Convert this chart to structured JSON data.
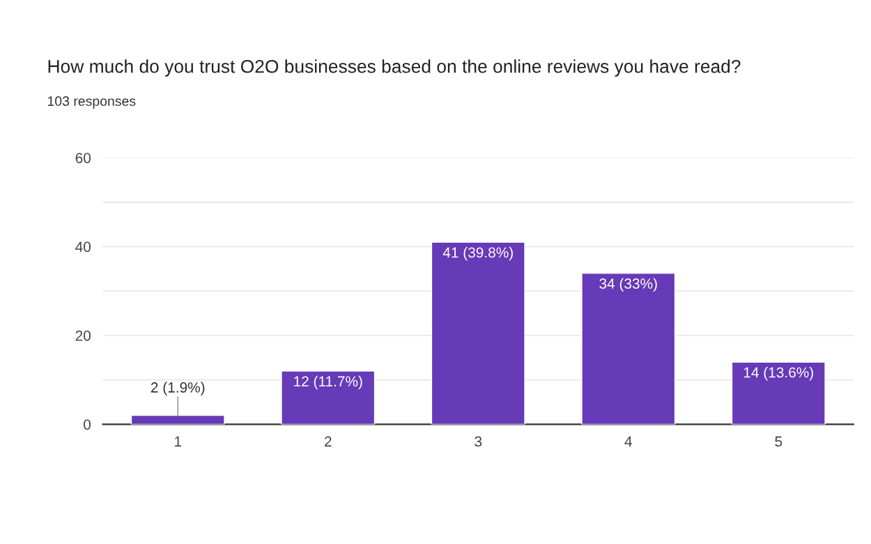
{
  "chart_data": {
    "type": "bar",
    "title": "How much do you trust O2O businesses based on the online reviews you have read?",
    "subtitle": "103 responses",
    "categories": [
      "1",
      "2",
      "3",
      "4",
      "5"
    ],
    "values": [
      2,
      12,
      41,
      34,
      14
    ],
    "value_labels": [
      "2 (1.9%)",
      "12 (11.7%)",
      "41 (39.8%)",
      "34 (33%)",
      "14 (13.6%)"
    ],
    "color": "#673ab7",
    "ylim": [
      0,
      60
    ],
    "yticks": [
      0,
      {
        "value": 10,
        "label": null
      },
      20,
      {
        "value": 30,
        "label": null
      },
      40,
      {
        "value": 50,
        "label": null
      },
      60
    ],
    "grid": "y"
  }
}
